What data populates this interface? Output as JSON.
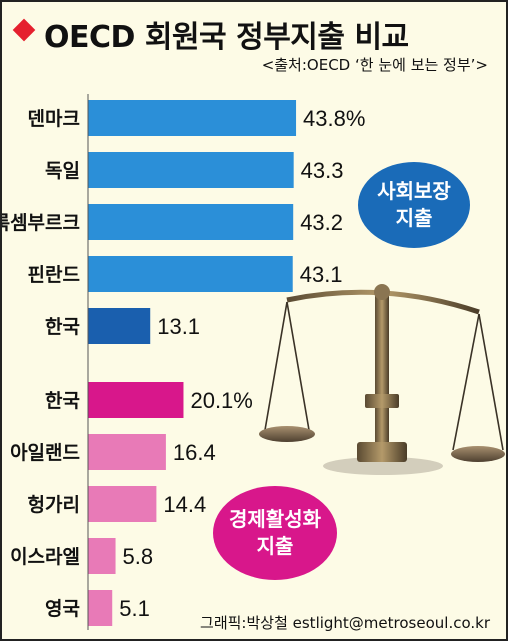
{
  "title": "OECD 회원국 정부지출 비교",
  "source": "<출처:OECD ‘한 눈에 보는 정부’>",
  "credit": "그래픽:박상철 estlight@metroseoul.co.kr",
  "colors": {
    "social": "#2b8fd8",
    "social_korea": "#1a5fae",
    "econ_korea": "#d8178b",
    "econ": "#e87ab7",
    "accent": "#e5202e"
  },
  "badges": {
    "social": [
      "사회보장",
      "지출"
    ],
    "econ": [
      "경제활성화",
      "지출"
    ]
  },
  "chart_data": [
    {
      "type": "bar",
      "orientation": "horizontal",
      "group": "사회보장 지출",
      "categories": [
        "덴마크",
        "독일",
        "룩셈부르크",
        "핀란드",
        "한국"
      ],
      "values": [
        43.8,
        43.3,
        43.2,
        43.1,
        13.1
      ],
      "value_labels": [
        "43.8%",
        "43.3",
        "43.2",
        "43.1",
        "13.1"
      ],
      "unit": "%",
      "highlight": "한국"
    },
    {
      "type": "bar",
      "orientation": "horizontal",
      "group": "경제활성화 지출",
      "categories": [
        "한국",
        "아일랜드",
        "헝가리",
        "이스라엘",
        "영국"
      ],
      "values": [
        20.1,
        16.4,
        14.4,
        5.8,
        5.1
      ],
      "value_labels": [
        "20.1%",
        "16.4",
        "14.4",
        "5.8",
        "5.1"
      ],
      "unit": "%",
      "highlight": "한국"
    }
  ]
}
